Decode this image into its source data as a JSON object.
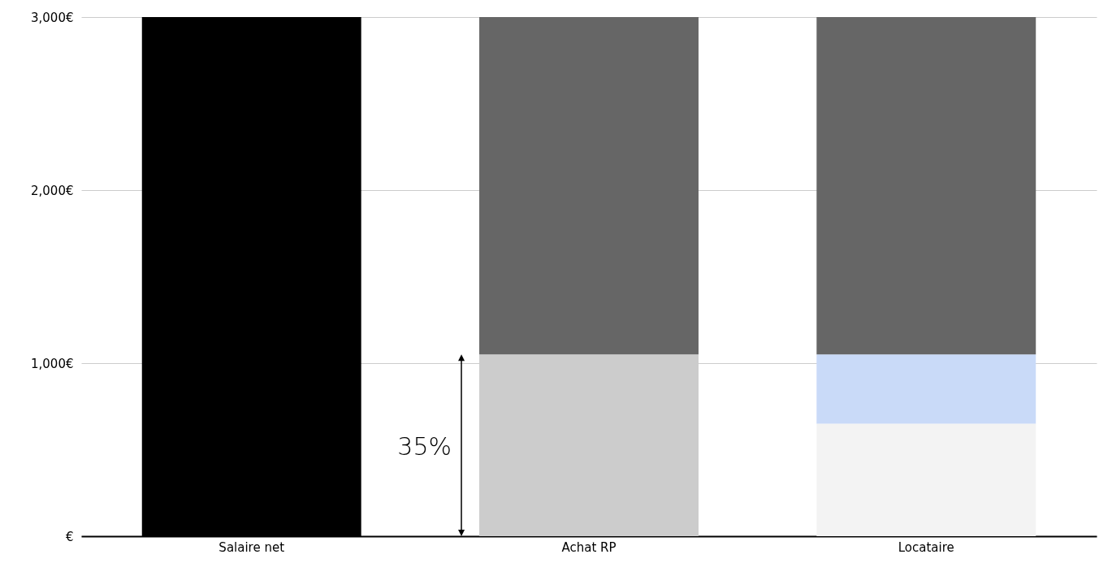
{
  "chart_data": {
    "type": "bar",
    "stacked": true,
    "categories": [
      "Salaire net",
      "Achat RP",
      "Locataire"
    ],
    "series": [
      {
        "color": "#000000",
        "values": [
          3000,
          null,
          null
        ]
      },
      {
        "color": "#cccccc",
        "values": [
          null,
          1050,
          null
        ]
      },
      {
        "color": "#f3f3f3",
        "values": [
          null,
          null,
          650
        ]
      },
      {
        "color": "#c9daf8",
        "values": [
          null,
          null,
          400
        ]
      },
      {
        "color": "#666666",
        "values": [
          null,
          1950,
          1950
        ]
      }
    ],
    "ylim": [
      0,
      3000
    ],
    "yticks": [
      {
        "value": 0,
        "label": "€"
      },
      {
        "value": 1000,
        "label": "1,000€"
      },
      {
        "value": 2000,
        "label": "2,000€"
      },
      {
        "value": 3000,
        "label": "3,000€"
      }
    ],
    "grid": "y",
    "annotations": [
      "35%"
    ]
  }
}
